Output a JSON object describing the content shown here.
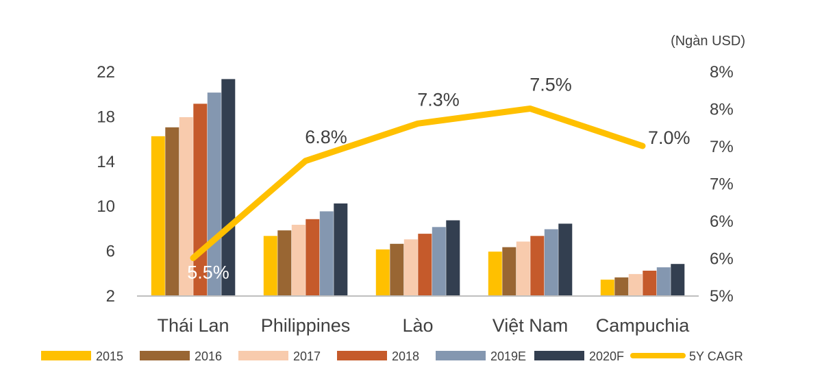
{
  "chart_data": {
    "type": "bar",
    "unit_label": "(Ngàn USD)",
    "categories": [
      "Thái Lan",
      "Philippines",
      "Lào",
      "Việt Nam",
      "Campuchia"
    ],
    "series": [
      {
        "name": "2015",
        "color": "#FFC000",
        "values": [
          16.2,
          7.3,
          6.1,
          5.9,
          3.4
        ]
      },
      {
        "name": "2016",
        "color": "#996633",
        "values": [
          17.0,
          7.8,
          6.6,
          6.3,
          3.6
        ]
      },
      {
        "name": "2017",
        "color": "#F8CBAD",
        "values": [
          17.9,
          8.3,
          7.0,
          6.8,
          3.9
        ]
      },
      {
        "name": "2018",
        "color": "#C55A2B",
        "values": [
          19.1,
          8.8,
          7.5,
          7.3,
          4.2
        ]
      },
      {
        "name": "2019E",
        "color": "#8497B0",
        "values": [
          20.1,
          9.5,
          8.1,
          7.9,
          4.5
        ]
      },
      {
        "name": "2020F",
        "color": "#333F50",
        "values": [
          21.3,
          10.2,
          8.7,
          8.4,
          4.8
        ]
      }
    ],
    "line_series": {
      "name": "5Y CAGR",
      "color": "#FFC000",
      "values": [
        5.5,
        6.8,
        7.3,
        7.5,
        7.0
      ],
      "labels": [
        "5.5%",
        "6.8%",
        "7.3%",
        "7.5%",
        "7.0%"
      ],
      "label_colors": [
        "#ffffff",
        "#404040",
        "#404040",
        "#404040",
        "#404040"
      ]
    },
    "y_left": {
      "ticks": [
        2,
        6,
        10,
        14,
        18,
        22
      ],
      "tick_labels": [
        "2",
        "6",
        "10",
        "14",
        "18",
        "22"
      ],
      "ylim": [
        2,
        22
      ]
    },
    "y_right": {
      "tick_values": [
        5.0,
        5.5,
        6.0,
        6.5,
        7.0,
        7.5,
        8.0
      ],
      "tick_labels": [
        "5%",
        "6%",
        "6%",
        "7%",
        "7%",
        "8%",
        "8%"
      ],
      "ylim": [
        5.0,
        8.0
      ]
    },
    "legend_position": "bottom",
    "grid": false
  }
}
